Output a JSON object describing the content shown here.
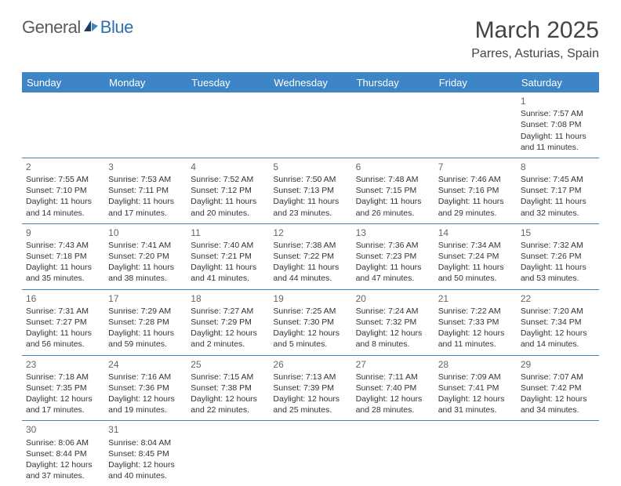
{
  "logo": {
    "text1": "General",
    "text2": "Blue"
  },
  "title": "March 2025",
  "location": "Parres, Asturias, Spain",
  "day_headers": [
    "Sunday",
    "Monday",
    "Tuesday",
    "Wednesday",
    "Thursday",
    "Friday",
    "Saturday"
  ],
  "colors": {
    "header_bg": "#3d85c6",
    "header_fg": "#ffffff",
    "border": "#3d85c6",
    "daynum": "#666666",
    "text": "#333333",
    "logo_gray": "#5a5a5a",
    "logo_blue": "#2f6fb0"
  },
  "layout": {
    "cols": 7,
    "rows": 6,
    "col_width_pct": 14.2857,
    "cell_fontsize_pt": 8,
    "header_fontsize_pt": 10,
    "title_fontsize_pt": 22
  },
  "weeks": [
    [
      null,
      null,
      null,
      null,
      null,
      null,
      {
        "n": "1",
        "sr": "Sunrise: 7:57 AM",
        "ss": "Sunset: 7:08 PM",
        "dl": "Daylight: 11 hours and 11 minutes."
      }
    ],
    [
      {
        "n": "2",
        "sr": "Sunrise: 7:55 AM",
        "ss": "Sunset: 7:10 PM",
        "dl": "Daylight: 11 hours and 14 minutes."
      },
      {
        "n": "3",
        "sr": "Sunrise: 7:53 AM",
        "ss": "Sunset: 7:11 PM",
        "dl": "Daylight: 11 hours and 17 minutes."
      },
      {
        "n": "4",
        "sr": "Sunrise: 7:52 AM",
        "ss": "Sunset: 7:12 PM",
        "dl": "Daylight: 11 hours and 20 minutes."
      },
      {
        "n": "5",
        "sr": "Sunrise: 7:50 AM",
        "ss": "Sunset: 7:13 PM",
        "dl": "Daylight: 11 hours and 23 minutes."
      },
      {
        "n": "6",
        "sr": "Sunrise: 7:48 AM",
        "ss": "Sunset: 7:15 PM",
        "dl": "Daylight: 11 hours and 26 minutes."
      },
      {
        "n": "7",
        "sr": "Sunrise: 7:46 AM",
        "ss": "Sunset: 7:16 PM",
        "dl": "Daylight: 11 hours and 29 minutes."
      },
      {
        "n": "8",
        "sr": "Sunrise: 7:45 AM",
        "ss": "Sunset: 7:17 PM",
        "dl": "Daylight: 11 hours and 32 minutes."
      }
    ],
    [
      {
        "n": "9",
        "sr": "Sunrise: 7:43 AM",
        "ss": "Sunset: 7:18 PM",
        "dl": "Daylight: 11 hours and 35 minutes."
      },
      {
        "n": "10",
        "sr": "Sunrise: 7:41 AM",
        "ss": "Sunset: 7:20 PM",
        "dl": "Daylight: 11 hours and 38 minutes."
      },
      {
        "n": "11",
        "sr": "Sunrise: 7:40 AM",
        "ss": "Sunset: 7:21 PM",
        "dl": "Daylight: 11 hours and 41 minutes."
      },
      {
        "n": "12",
        "sr": "Sunrise: 7:38 AM",
        "ss": "Sunset: 7:22 PM",
        "dl": "Daylight: 11 hours and 44 minutes."
      },
      {
        "n": "13",
        "sr": "Sunrise: 7:36 AM",
        "ss": "Sunset: 7:23 PM",
        "dl": "Daylight: 11 hours and 47 minutes."
      },
      {
        "n": "14",
        "sr": "Sunrise: 7:34 AM",
        "ss": "Sunset: 7:24 PM",
        "dl": "Daylight: 11 hours and 50 minutes."
      },
      {
        "n": "15",
        "sr": "Sunrise: 7:32 AM",
        "ss": "Sunset: 7:26 PM",
        "dl": "Daylight: 11 hours and 53 minutes."
      }
    ],
    [
      {
        "n": "16",
        "sr": "Sunrise: 7:31 AM",
        "ss": "Sunset: 7:27 PM",
        "dl": "Daylight: 11 hours and 56 minutes."
      },
      {
        "n": "17",
        "sr": "Sunrise: 7:29 AM",
        "ss": "Sunset: 7:28 PM",
        "dl": "Daylight: 11 hours and 59 minutes."
      },
      {
        "n": "18",
        "sr": "Sunrise: 7:27 AM",
        "ss": "Sunset: 7:29 PM",
        "dl": "Daylight: 12 hours and 2 minutes."
      },
      {
        "n": "19",
        "sr": "Sunrise: 7:25 AM",
        "ss": "Sunset: 7:30 PM",
        "dl": "Daylight: 12 hours and 5 minutes."
      },
      {
        "n": "20",
        "sr": "Sunrise: 7:24 AM",
        "ss": "Sunset: 7:32 PM",
        "dl": "Daylight: 12 hours and 8 minutes."
      },
      {
        "n": "21",
        "sr": "Sunrise: 7:22 AM",
        "ss": "Sunset: 7:33 PM",
        "dl": "Daylight: 12 hours and 11 minutes."
      },
      {
        "n": "22",
        "sr": "Sunrise: 7:20 AM",
        "ss": "Sunset: 7:34 PM",
        "dl": "Daylight: 12 hours and 14 minutes."
      }
    ],
    [
      {
        "n": "23",
        "sr": "Sunrise: 7:18 AM",
        "ss": "Sunset: 7:35 PM",
        "dl": "Daylight: 12 hours and 17 minutes."
      },
      {
        "n": "24",
        "sr": "Sunrise: 7:16 AM",
        "ss": "Sunset: 7:36 PM",
        "dl": "Daylight: 12 hours and 19 minutes."
      },
      {
        "n": "25",
        "sr": "Sunrise: 7:15 AM",
        "ss": "Sunset: 7:38 PM",
        "dl": "Daylight: 12 hours and 22 minutes."
      },
      {
        "n": "26",
        "sr": "Sunrise: 7:13 AM",
        "ss": "Sunset: 7:39 PM",
        "dl": "Daylight: 12 hours and 25 minutes."
      },
      {
        "n": "27",
        "sr": "Sunrise: 7:11 AM",
        "ss": "Sunset: 7:40 PM",
        "dl": "Daylight: 12 hours and 28 minutes."
      },
      {
        "n": "28",
        "sr": "Sunrise: 7:09 AM",
        "ss": "Sunset: 7:41 PM",
        "dl": "Daylight: 12 hours and 31 minutes."
      },
      {
        "n": "29",
        "sr": "Sunrise: 7:07 AM",
        "ss": "Sunset: 7:42 PM",
        "dl": "Daylight: 12 hours and 34 minutes."
      }
    ],
    [
      {
        "n": "30",
        "sr": "Sunrise: 8:06 AM",
        "ss": "Sunset: 8:44 PM",
        "dl": "Daylight: 12 hours and 37 minutes."
      },
      {
        "n": "31",
        "sr": "Sunrise: 8:04 AM",
        "ss": "Sunset: 8:45 PM",
        "dl": "Daylight: 12 hours and 40 minutes."
      },
      null,
      null,
      null,
      null,
      null
    ]
  ]
}
